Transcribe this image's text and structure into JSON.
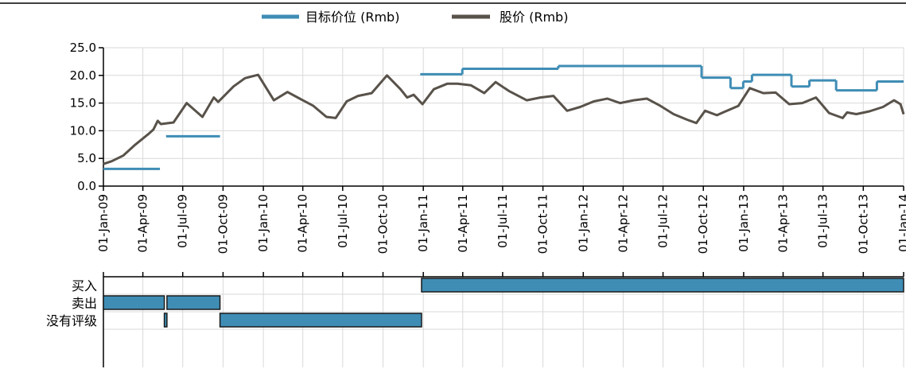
{
  "colors": {
    "target": "#3f8db5",
    "price": "#58524a",
    "rating_fill": "#3f8db5",
    "rating_stroke": "#1a1a1a",
    "grid": "#d9d9d9",
    "axis": "#000000"
  },
  "legend": {
    "target_label": "目标价位 (Rmb)",
    "price_label": "股价 (Rmb)"
  },
  "chart_data": {
    "type": "line",
    "x_range": [
      "2009-01-01",
      "2014-01-01"
    ],
    "ylim": [
      0,
      25
    ],
    "y_ticks": [
      "0.0",
      "5.0",
      "10.0",
      "15.0",
      "20.0",
      "25.0"
    ],
    "x_ticks": [
      "01-Jan-09",
      "01-Apr-09",
      "01-Jul-09",
      "01-Oct-09",
      "01-Jan-10",
      "01-Apr-10",
      "01-Jul-10",
      "01-Oct-10",
      "01-Jan-11",
      "01-Apr-11",
      "01-Jul-11",
      "01-Oct-11",
      "01-Jan-12",
      "01-Apr-12",
      "01-Jul-12",
      "01-Oct-12",
      "01-Jan-13",
      "01-Apr-13",
      "01-Jul-13",
      "01-Oct-13",
      "01-Jan-14"
    ],
    "x_tick_dates": [
      "2009-01-01",
      "2009-04-01",
      "2009-07-01",
      "2009-10-01",
      "2010-01-01",
      "2010-04-01",
      "2010-07-01",
      "2010-10-01",
      "2011-01-01",
      "2011-04-01",
      "2011-07-01",
      "2011-10-01",
      "2012-01-01",
      "2012-04-01",
      "2012-07-01",
      "2012-10-01",
      "2013-01-01",
      "2013-04-01",
      "2013-07-01",
      "2013-10-01",
      "2014-01-01"
    ],
    "grid": true,
    "legend_position": "top-center",
    "series": [
      {
        "name": "目标价位 (Rmb)",
        "style": "step",
        "segments": [
          {
            "start": "2009-01-01",
            "end": "2009-05-10",
            "value": 3.1
          },
          {
            "start": "2009-05-24",
            "end": "2009-09-24",
            "value": 9.0
          },
          {
            "start": "2010-12-25",
            "end": "2011-03-31",
            "value": 20.2
          },
          {
            "start": "2011-03-31",
            "end": "2011-11-05",
            "value": 21.2
          },
          {
            "start": "2011-11-05",
            "end": "2012-09-27",
            "value": 21.7
          },
          {
            "start": "2012-09-27",
            "end": "2012-12-02",
            "value": 19.6
          },
          {
            "start": "2012-12-02",
            "end": "2012-12-31",
            "value": 17.7
          },
          {
            "start": "2012-12-31",
            "end": "2013-01-20",
            "value": 18.9
          },
          {
            "start": "2013-01-20",
            "end": "2013-04-20",
            "value": 20.1
          },
          {
            "start": "2013-04-20",
            "end": "2013-05-31",
            "value": 18.0
          },
          {
            "start": "2013-05-31",
            "end": "2013-07-31",
            "value": 19.1
          },
          {
            "start": "2013-07-31",
            "end": "2013-11-01",
            "value": 17.3
          },
          {
            "start": "2013-11-01",
            "end": "2014-01-01",
            "value": 18.9
          }
        ]
      },
      {
        "name": "股价 (Rmb)",
        "style": "line",
        "points": [
          [
            "2009-01-01",
            4.0
          ],
          [
            "2009-01-20",
            4.5
          ],
          [
            "2009-02-15",
            5.5
          ],
          [
            "2009-03-15",
            7.5
          ],
          [
            "2009-04-15",
            9.5
          ],
          [
            "2009-04-25",
            10.2
          ],
          [
            "2009-05-05",
            11.8
          ],
          [
            "2009-05-12",
            11.2
          ],
          [
            "2009-06-10",
            11.5
          ],
          [
            "2009-07-10",
            15.0
          ],
          [
            "2009-08-15",
            12.5
          ],
          [
            "2009-09-10",
            16.0
          ],
          [
            "2009-09-20",
            15.2
          ],
          [
            "2009-10-25",
            18.0
          ],
          [
            "2009-11-20",
            19.5
          ],
          [
            "2009-12-20",
            20.1
          ],
          [
            "2010-01-25",
            15.5
          ],
          [
            "2010-02-25",
            17.0
          ],
          [
            "2010-03-25",
            15.8
          ],
          [
            "2010-04-25",
            14.5
          ],
          [
            "2010-05-25",
            12.5
          ],
          [
            "2010-06-15",
            12.3
          ],
          [
            "2010-07-10",
            15.3
          ],
          [
            "2010-08-05",
            16.3
          ],
          [
            "2010-09-05",
            16.8
          ],
          [
            "2010-10-10",
            20.0
          ],
          [
            "2010-11-10",
            17.5
          ],
          [
            "2010-11-25",
            16.0
          ],
          [
            "2010-12-10",
            16.5
          ],
          [
            "2010-12-30",
            14.8
          ],
          [
            "2011-01-25",
            17.5
          ],
          [
            "2011-02-25",
            18.5
          ],
          [
            "2011-03-20",
            18.5
          ],
          [
            "2011-04-20",
            18.2
          ],
          [
            "2011-05-20",
            16.8
          ],
          [
            "2011-06-15",
            18.8
          ],
          [
            "2011-07-15",
            17.2
          ],
          [
            "2011-08-25",
            15.5
          ],
          [
            "2011-09-25",
            16.0
          ],
          [
            "2011-10-25",
            16.3
          ],
          [
            "2011-11-25",
            13.6
          ],
          [
            "2011-12-25",
            14.3
          ],
          [
            "2012-01-25",
            15.3
          ],
          [
            "2012-02-25",
            15.8
          ],
          [
            "2012-03-25",
            15.0
          ],
          [
            "2012-04-25",
            15.5
          ],
          [
            "2012-05-25",
            15.8
          ],
          [
            "2012-06-25",
            14.5
          ],
          [
            "2012-07-25",
            13.0
          ],
          [
            "2012-08-25",
            12.0
          ],
          [
            "2012-09-15",
            11.4
          ],
          [
            "2012-10-05",
            13.6
          ],
          [
            "2012-11-01",
            12.8
          ],
          [
            "2012-11-15",
            13.3
          ],
          [
            "2012-12-20",
            14.5
          ],
          [
            "2013-01-15",
            17.7
          ],
          [
            "2013-02-15",
            16.8
          ],
          [
            "2013-03-15",
            16.9
          ],
          [
            "2013-04-15",
            14.8
          ],
          [
            "2013-05-15",
            15.0
          ],
          [
            "2013-06-15",
            16.0
          ],
          [
            "2013-07-15",
            13.2
          ],
          [
            "2013-08-15",
            12.3
          ],
          [
            "2013-08-25",
            13.3
          ],
          [
            "2013-09-15",
            13.0
          ],
          [
            "2013-10-15",
            13.5
          ],
          [
            "2013-11-15",
            14.3
          ],
          [
            "2013-12-10",
            15.5
          ],
          [
            "2013-12-25",
            14.8
          ],
          [
            "2014-01-01",
            13.0
          ]
        ]
      }
    ],
    "rating_rows": [
      {
        "label": "买入",
        "periods": [
          [
            "2010-12-28",
            "2014-01-01"
          ]
        ]
      },
      {
        "label": "卖出",
        "periods": [
          [
            "2009-01-01",
            "2009-05-20"
          ],
          [
            "2009-05-26",
            "2009-09-24"
          ]
        ]
      },
      {
        "label": "没有评级",
        "periods": [
          [
            "2009-05-20",
            "2009-05-26"
          ],
          [
            "2009-09-24",
            "2010-12-28"
          ]
        ]
      }
    ]
  }
}
